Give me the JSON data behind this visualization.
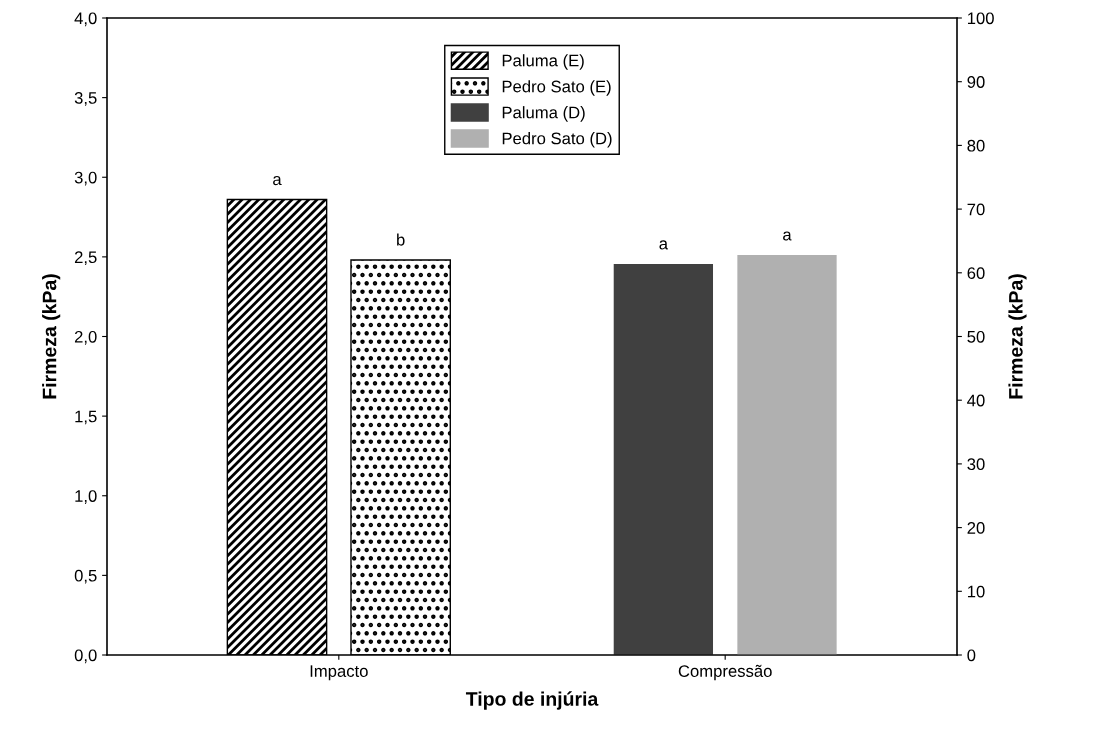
{
  "chart_data": {
    "type": "bar",
    "xlabel": "Tipo de injúria",
    "ylabel": "Firmeza (kPa)",
    "y2label": "Firmeza (kPa)",
    "categories": [
      "Impacto",
      "Compressão"
    ],
    "series": [
      {
        "name": "Paluma (E)",
        "color": "#000000",
        "values": [
          2.86,
          null
        ]
      },
      {
        "name": "Pedro Sato (E)",
        "color": "#000000",
        "values": [
          2.48,
          null
        ]
      },
      {
        "name": "Paluma (D)",
        "color": "#404040",
        "values": [
          null,
          61.4
        ],
        "axis": "y2"
      },
      {
        "name": "Pedro Sato (D)",
        "color": "#b0b0b0",
        "values": [
          null,
          62.8
        ],
        "axis": "y2"
      }
    ],
    "ylim": [
      0,
      4
    ],
    "yticks": [
      {
        "value": 0,
        "label": "0,0"
      },
      {
        "value": 0.5,
        "label": "0,5"
      },
      {
        "value": 1,
        "label": "1,0"
      },
      {
        "value": 1.5,
        "label": "1,5"
      },
      {
        "value": 2,
        "label": "2,0"
      },
      {
        "value": 2.5,
        "label": "2,5"
      },
      {
        "value": 3,
        "label": "3,0"
      },
      {
        "value": 3.5,
        "label": "3,5"
      },
      {
        "value": 4,
        "label": "4,0"
      }
    ],
    "y2lim": [
      0,
      100
    ],
    "y2ticks": [
      0,
      10,
      20,
      30,
      40,
      50,
      60,
      70,
      80,
      90,
      100
    ],
    "annotations": [
      "a",
      "b",
      "a",
      "a"
    ],
    "legend": "top",
    "grid": false
  }
}
